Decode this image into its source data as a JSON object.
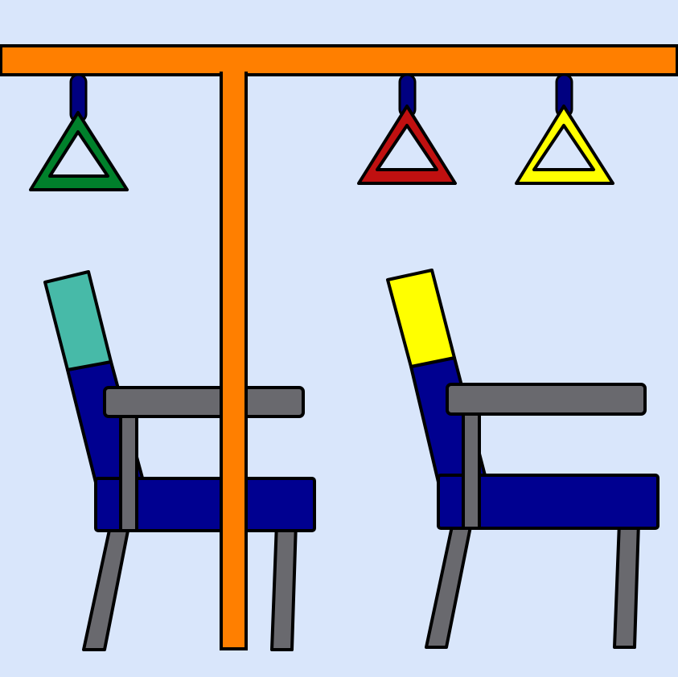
{
  "scene": {
    "background": "#d9e6fb",
    "outline": "#000000",
    "rail_color": "#ff7f00",
    "strap_color": "#000080",
    "handles": [
      {
        "color": "#00802b"
      },
      {
        "color": "#c01010"
      },
      {
        "color": "#ffff00"
      }
    ],
    "seats": [
      {
        "headrest_color": "#47baa8",
        "upholstery_color": "#000090",
        "frame_color": "#69696e"
      },
      {
        "headrest_color": "#ffff00",
        "upholstery_color": "#000090",
        "frame_color": "#69696e"
      }
    ]
  }
}
